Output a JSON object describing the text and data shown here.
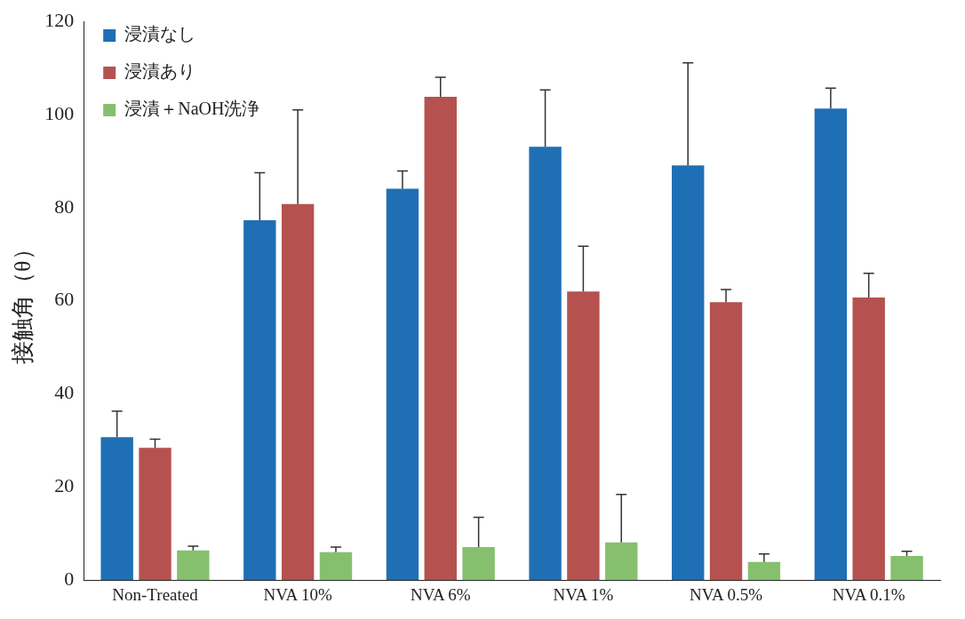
{
  "chart_data": {
    "type": "bar",
    "ylabel": "接触角（θ）",
    "categories": [
      "Non-Treated",
      "NVA 10%",
      "NVA 6%",
      "NVA 1%",
      "NVA 0.5%",
      "NVA 0.1%"
    ],
    "series": [
      {
        "name": "浸漬なし",
        "color": "#1f6fb5",
        "values": [
          30.7,
          77.3,
          84.1,
          93.1,
          89.1,
          101.3
        ],
        "errors": [
          [
            30.7,
            36.3
          ],
          [
            77.3,
            87.5
          ],
          [
            84.1,
            87.9
          ],
          [
            93.1,
            105.3
          ],
          [
            89.1,
            111.1
          ],
          [
            101.3,
            105.7
          ]
        ]
      },
      {
        "name": "浸漬あり",
        "color": "#b5524f",
        "values": [
          28.4,
          80.8,
          103.8,
          62,
          59.7,
          60.7
        ],
        "errors": [
          [
            28.4,
            30.3
          ],
          [
            80.8,
            101
          ],
          [
            103.8,
            108
          ],
          [
            62,
            71.7
          ],
          [
            59.7,
            62.4
          ],
          [
            60.7,
            65.9
          ]
        ]
      },
      {
        "name": "浸漬＋NaOH洗浄",
        "color": "#86c06e",
        "values": [
          6.4,
          6,
          7.1,
          8.1,
          3.9,
          5.2
        ],
        "errors": [
          [
            6.4,
            7.3
          ],
          [
            6,
            7.1
          ],
          [
            7.1,
            13.5
          ],
          [
            8.1,
            18.4
          ],
          [
            3.9,
            5.6
          ],
          [
            5.2,
            6.2
          ]
        ]
      }
    ],
    "ylim": [
      0,
      120
    ],
    "yticks": [
      0,
      20,
      40,
      60,
      80,
      100,
      120
    ],
    "grid": false,
    "legend": "top left"
  }
}
